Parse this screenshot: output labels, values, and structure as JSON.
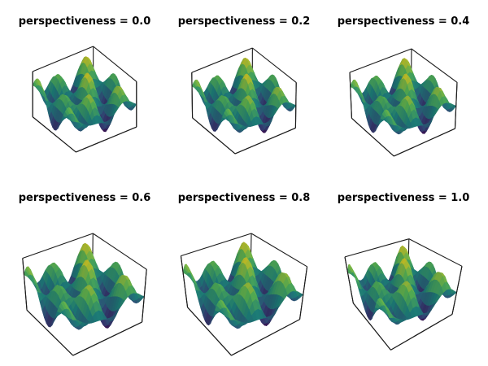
{
  "figure": {
    "panels": [
      {
        "title": "perspectiveness = 0.0",
        "perspectiveness": 0.0
      },
      {
        "title": "perspectiveness = 0.2",
        "perspectiveness": 0.2
      },
      {
        "title": "perspectiveness = 0.4",
        "perspectiveness": 0.4
      },
      {
        "title": "perspectiveness = 0.6",
        "perspectiveness": 0.6
      },
      {
        "title": "perspectiveness = 0.8",
        "perspectiveness": 0.8
      },
      {
        "title": "perspectiveness = 1.0",
        "perspectiveness": 1.0
      }
    ],
    "colormap": "viridis",
    "colormap_stops": [
      "#440154",
      "#3b528b",
      "#21918c",
      "#5ec962",
      "#fde725"
    ]
  }
}
